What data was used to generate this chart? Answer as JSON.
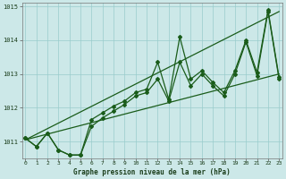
{
  "xlabel": "Graphe pression niveau de la mer (hPa)",
  "x_ticks": [
    0,
    1,
    2,
    3,
    4,
    5,
    6,
    7,
    8,
    9,
    10,
    11,
    12,
    13,
    14,
    15,
    16,
    17,
    18,
    19,
    20,
    21,
    22,
    23
  ],
  "ylim": [
    1010.5,
    1015.1
  ],
  "yticks": [
    1011,
    1012,
    1013,
    1014,
    1015
  ],
  "bg_color": "#cce8e8",
  "grid_color": "#99cccc",
  "line_color": "#1a5c1a",
  "series1": [
    1011.1,
    1010.85,
    1011.25,
    1010.75,
    1010.6,
    1010.6,
    1011.65,
    1011.85,
    1012.05,
    1012.2,
    1012.45,
    1012.55,
    1013.35,
    1012.25,
    1014.1,
    1012.85,
    1013.1,
    1012.75,
    1012.45,
    1013.1,
    1014.0,
    1013.05,
    1014.9,
    1012.9
  ],
  "series2": [
    1011.1,
    1010.85,
    1011.25,
    1010.75,
    1010.6,
    1010.6,
    1011.45,
    1011.7,
    1011.9,
    1012.1,
    1012.35,
    1012.45,
    1012.85,
    1012.2,
    1013.35,
    1012.65,
    1013.0,
    1012.65,
    1012.35,
    1013.0,
    1013.95,
    1012.95,
    1014.85,
    1012.85
  ],
  "trend1_x": [
    0,
    23
  ],
  "trend1_y": [
    1011.05,
    1014.85
  ],
  "trend2_x": [
    0,
    23
  ],
  "trend2_y": [
    1011.05,
    1013.0
  ]
}
